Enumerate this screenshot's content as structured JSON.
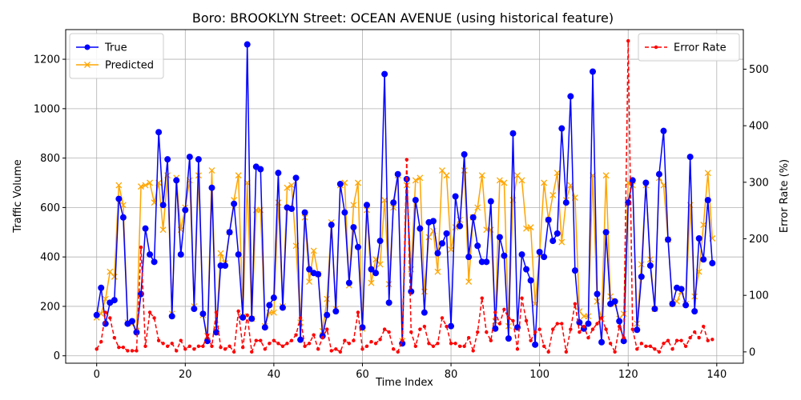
{
  "chart_data": {
    "type": "line",
    "title": "Boro: BROOKLYN Street: OCEAN AVENUE (using historical feature)",
    "xlabel": "Time Index",
    "ylabel_left": "Traffic Volume",
    "ylabel_right": "Error Rate (%)",
    "xlim": [
      -7,
      146
    ],
    "ylim_left": [
      -30,
      1320
    ],
    "ylim_right": [
      -20,
      570
    ],
    "x_ticks": [
      0,
      20,
      40,
      60,
      80,
      100,
      120,
      140
    ],
    "y_ticks_left": [
      0,
      200,
      400,
      600,
      800,
      1000,
      1200
    ],
    "y_ticks_right": [
      0,
      100,
      200,
      300,
      400,
      500
    ],
    "grid": true,
    "legend_left": "top-left",
    "legend_right": "top-right",
    "series": [
      {
        "name": "True",
        "axis": "left",
        "color": "#0000ff",
        "marker": "circle",
        "linestyle": "solid",
        "values": [
          165,
          275,
          130,
          215,
          225,
          635,
          560,
          130,
          140,
          95,
          250,
          515,
          410,
          380,
          905,
          610,
          795,
          160,
          710,
          410,
          590,
          805,
          190,
          795,
          170,
          60,
          680,
          95,
          365,
          365,
          500,
          615,
          410,
          155,
          1260,
          150,
          765,
          755,
          115,
          205,
          235,
          740,
          195,
          600,
          595,
          720,
          65,
          580,
          350,
          335,
          330,
          80,
          165,
          530,
          180,
          695,
          580,
          295,
          520,
          440,
          115,
          610,
          350,
          335,
          465,
          1140,
          215,
          620,
          735,
          50,
          715,
          260,
          630,
          515,
          175,
          540,
          545,
          415,
          455,
          495,
          120,
          645,
          525,
          815,
          400,
          560,
          445,
          380,
          380,
          625,
          110,
          480,
          405,
          70,
          900,
          115,
          410,
          350,
          305,
          45,
          420,
          400,
          550,
          465,
          495,
          920,
          620,
          1050,
          345,
          135,
          110,
          130,
          1150,
          250,
          55,
          500,
          210,
          220,
          140,
          60,
          620,
          710,
          105,
          320,
          700,
          365,
          190,
          735,
          910,
          470,
          210,
          275,
          270,
          205,
          805,
          180,
          475,
          390,
          630,
          375
        ]
      },
      {
        "name": "Predicted",
        "axis": "left",
        "color": "#ffa500",
        "marker": "x",
        "linestyle": "solid",
        "values": [
          155,
          170,
          230,
          340,
          320,
          690,
          610,
          135,
          130,
          100,
          685,
          690,
          700,
          620,
          700,
          510,
          730,
          170,
          720,
          510,
          600,
          710,
          200,
          730,
          165,
          80,
          750,
          110,
          415,
          375,
          500,
          630,
          730,
          160,
          700,
          150,
          590,
          590,
          120,
          175,
          175,
          620,
          200,
          680,
          690,
          445,
          135,
          560,
          300,
          425,
          330,
          100,
          230,
          540,
          190,
          690,
          700,
          285,
          610,
          700,
          110,
          590,
          295,
          390,
          370,
          630,
          290,
          600,
          730,
          60,
          690,
          350,
          710,
          720,
          260,
          480,
          505,
          340,
          750,
          730,
          430,
          520,
          550,
          750,
          300,
          560,
          600,
          730,
          510,
          510,
          140,
          710,
          700,
          120,
          630,
          730,
          710,
          515,
          520,
          210,
          410,
          700,
          550,
          650,
          740,
          460,
          630,
          690,
          640,
          180,
          160,
          160,
          730,
          220,
          150,
          730,
          240,
          210,
          150,
          170,
          700,
          690,
          130,
          370,
          690,
          390,
          190,
          720,
          690,
          470,
          210,
          220,
          260,
          210,
          610,
          240,
          340,
          530,
          740,
          475
        ]
      },
      {
        "name": "Error Rate",
        "axis": "right",
        "color": "#ff0000",
        "marker": "dot",
        "linestyle": "dashed",
        "values": [
          5,
          18,
          70,
          60,
          25,
          8,
          8,
          2,
          2,
          2,
          185,
          10,
          70,
          60,
          20,
          15,
          10,
          15,
          2,
          20,
          5,
          10,
          5,
          10,
          10,
          30,
          10,
          70,
          8,
          5,
          10,
          0,
          72,
          8,
          65,
          0,
          20,
          20,
          5,
          15,
          20,
          15,
          10,
          15,
          20,
          30,
          60,
          10,
          15,
          30,
          5,
          25,
          40,
          2,
          5,
          0,
          20,
          15,
          20,
          70,
          5,
          10,
          18,
          15,
          22,
          40,
          35,
          5,
          0,
          20,
          340,
          35,
          10,
          40,
          45,
          15,
          10,
          15,
          60,
          45,
          15,
          15,
          10,
          10,
          25,
          2,
          35,
          95,
          35,
          20,
          70,
          50,
          75,
          60,
          55,
          5,
          95,
          55,
          20,
          35,
          40,
          10,
          0,
          40,
          50,
          50,
          0,
          40,
          85,
          35,
          45,
          25,
          40,
          50,
          60,
          40,
          15,
          0,
          45,
          25,
          550,
          40,
          5,
          15,
          10,
          10,
          5,
          0,
          15,
          20,
          5,
          20,
          20,
          10,
          25,
          35,
          25,
          45,
          20,
          22
        ]
      }
    ]
  }
}
